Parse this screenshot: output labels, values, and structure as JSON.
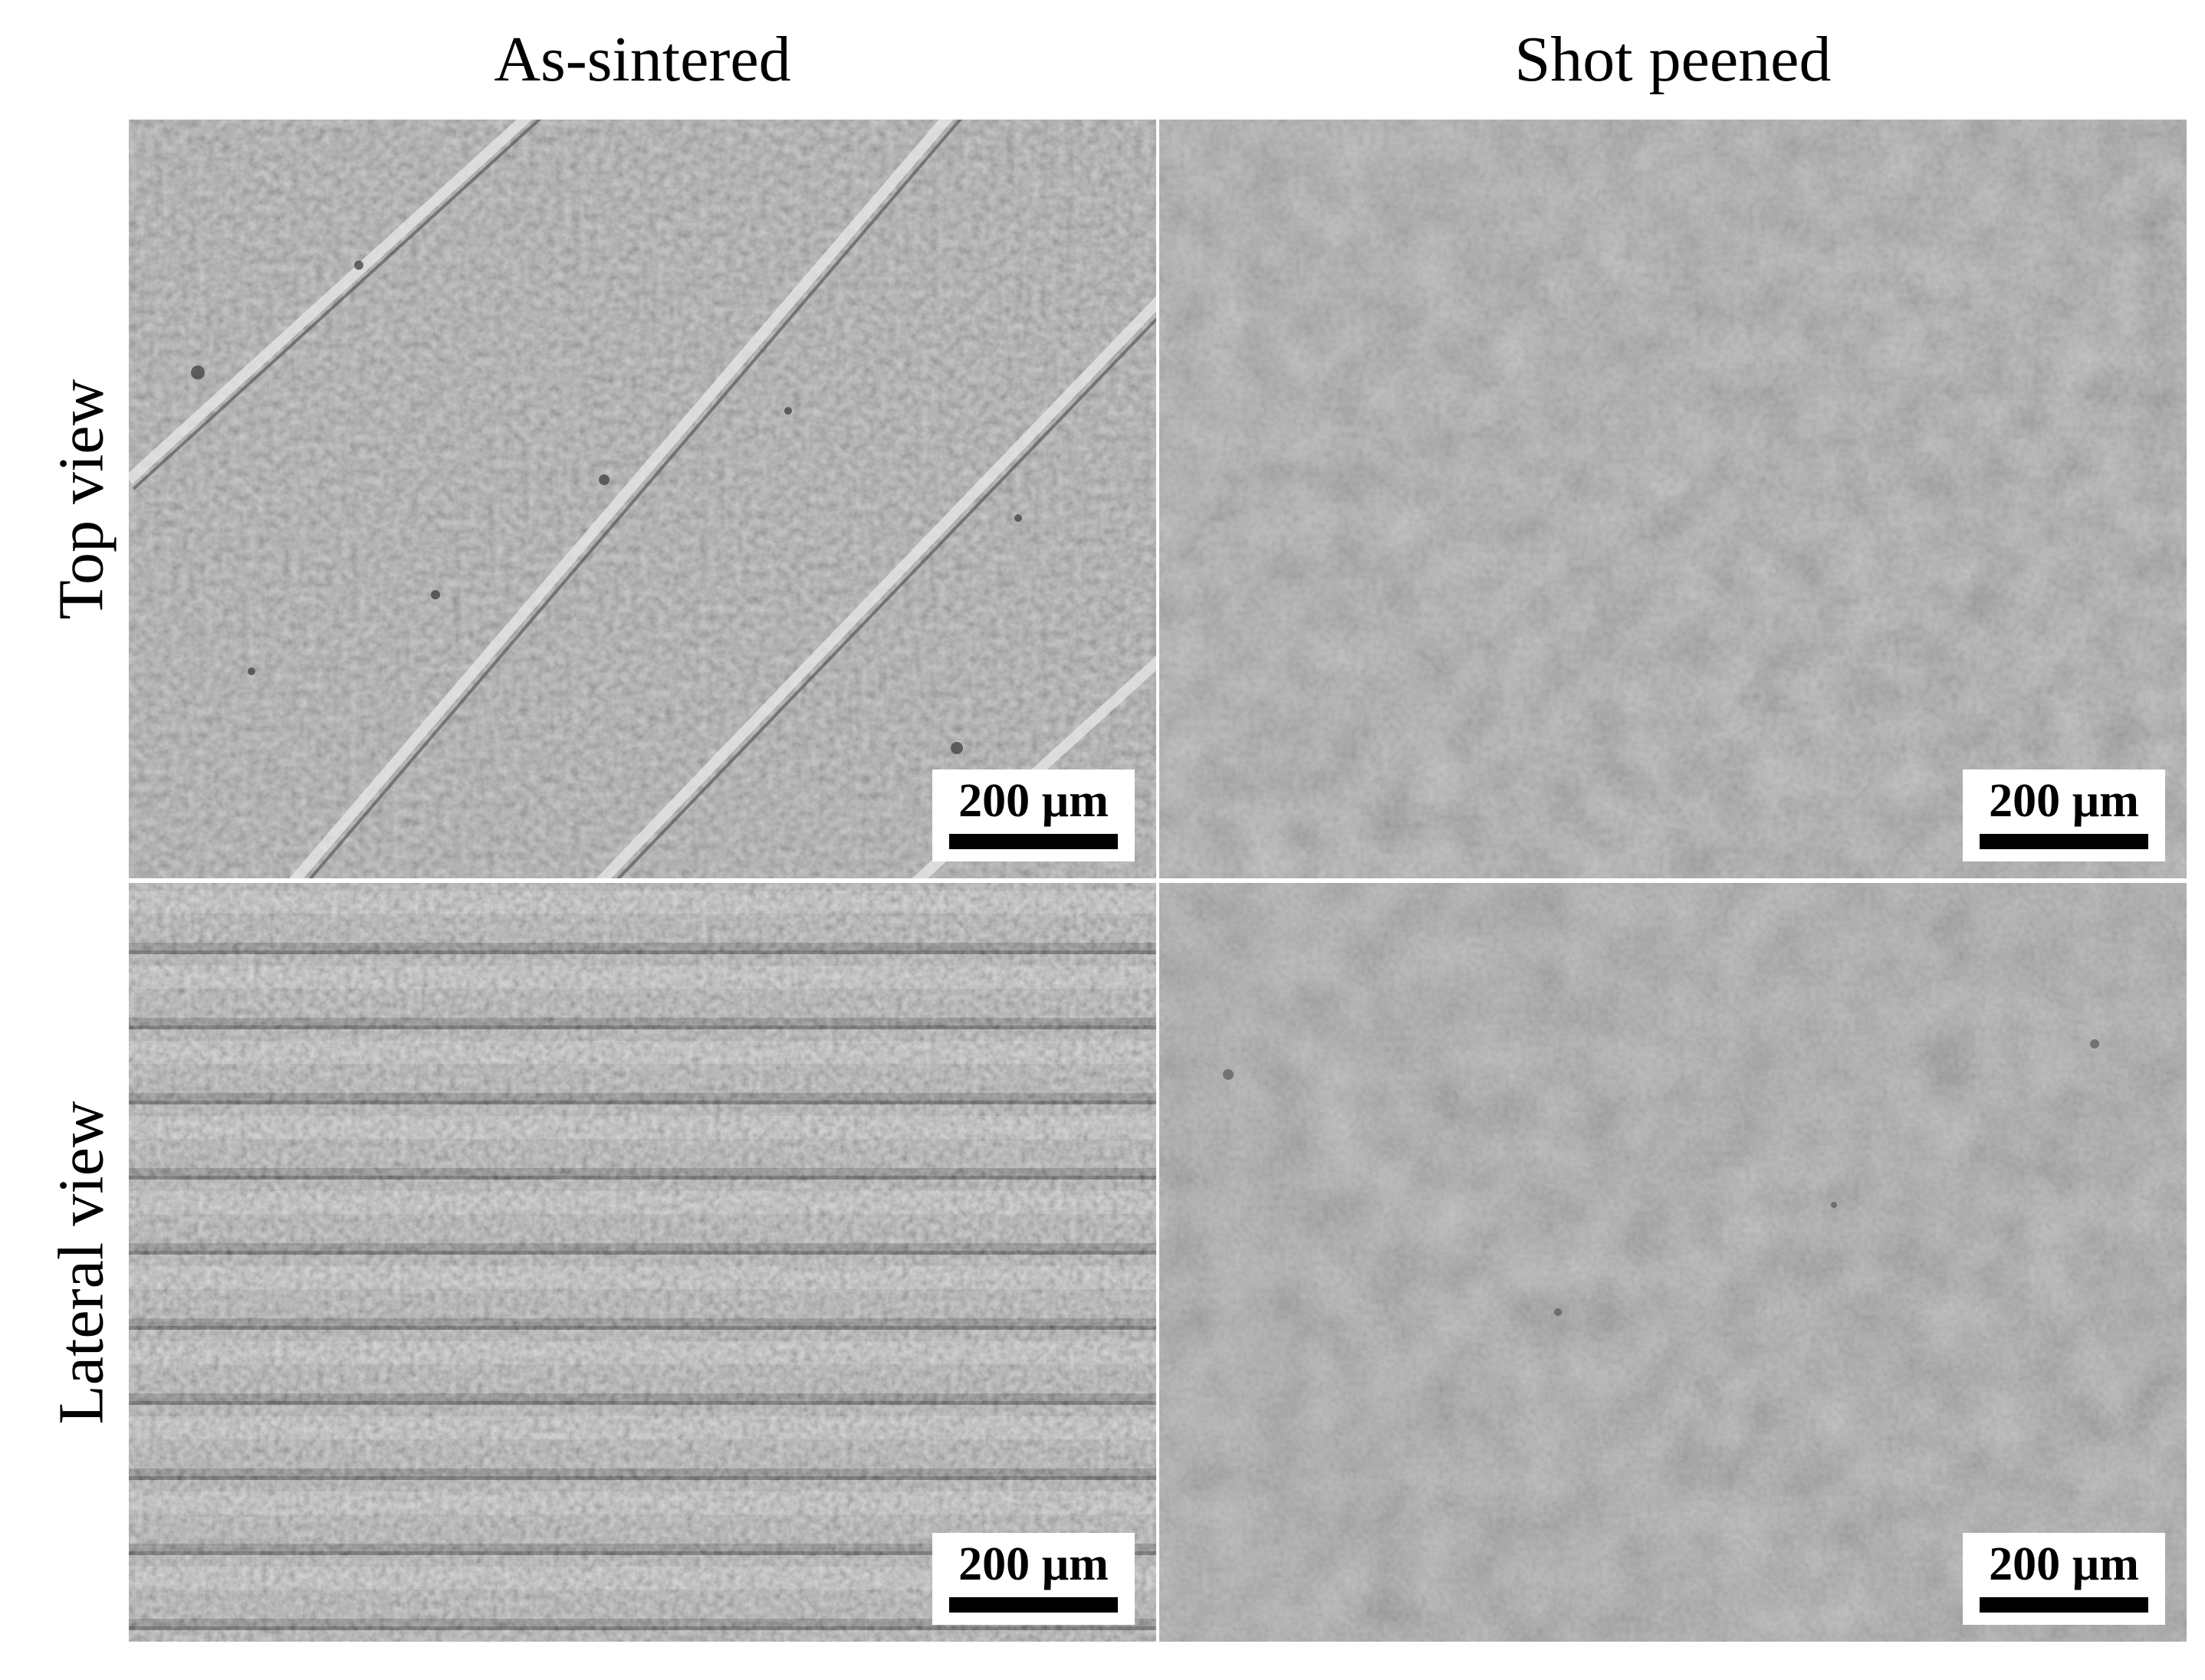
{
  "columns": {
    "left": "As-sintered",
    "right": "Shot peened"
  },
  "rows": {
    "top": "Top view",
    "bottom": "Lateral view"
  },
  "scale_bar": {
    "label": "200 µm"
  },
  "panels": [
    {
      "name": "top-view-as-sintered",
      "scale_label": "200 µm",
      "surface": "flat sintered surface with diagonal scan tracks"
    },
    {
      "name": "top-view-shot-peened",
      "scale_label": "200 µm",
      "surface": "uniformly dented peened surface"
    },
    {
      "name": "lateral-view-as-sintered",
      "scale_label": "200 µm",
      "surface": "horizontal stacked layer lines"
    },
    {
      "name": "lateral-view-shot-peened",
      "scale_label": "200 µm",
      "surface": "uniformly dented peened surface"
    }
  ]
}
